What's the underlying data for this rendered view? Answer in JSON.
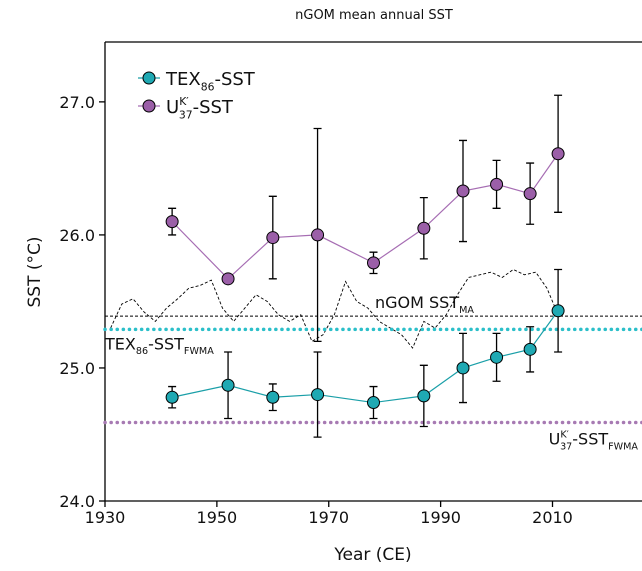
{
  "chart_data": {
    "type": "line",
    "title": "nGOM mean annual SST",
    "xlabel": "Year (CE)",
    "ylabel": "SST (°C)",
    "xlim": [
      1930,
      2026
    ],
    "ylim": [
      24.0,
      27.45
    ],
    "xticks": [
      1930,
      1950,
      1970,
      1990,
      2010
    ],
    "yticks": [
      {
        "value": 24,
        "label": "24.0"
      },
      {
        "value": 25,
        "label": "25.0"
      },
      {
        "value": 26,
        "label": "26.0"
      },
      {
        "value": 27,
        "label": "27.0"
      }
    ],
    "legend": "upper left",
    "series": [
      {
        "name": [
          {
            "text": "TEX"
          },
          {
            "text": "86",
            "sub": true
          },
          {
            "text": "-SST"
          }
        ],
        "color": "#1a9fa8",
        "marker_color": "#1fa9b3",
        "x": [
          1942,
          1952,
          1960,
          1968,
          1978,
          1987,
          1994,
          2000,
          2006,
          2011
        ],
        "values": [
          24.78,
          24.87,
          24.78,
          24.8,
          24.74,
          24.79,
          25.0,
          25.08,
          25.14,
          25.43
        ],
        "errors": [
          0.08,
          0.25,
          0.1,
          0.32,
          0.12,
          0.23,
          0.26,
          0.18,
          0.17,
          0.31
        ]
      },
      {
        "name": [
          {
            "text": "U"
          },
          {
            "text": "K′",
            "sup": true
          },
          {
            "text": "37",
            "sub": true
          },
          {
            "text": "-SST"
          }
        ],
        "color": "#a66db3",
        "marker_color": "#9b5fa8",
        "x": [
          1942,
          1952,
          1960,
          1968,
          1978,
          1987,
          1994,
          2000,
          2006,
          2011
        ],
        "values": [
          26.1,
          25.67,
          25.98,
          26.0,
          25.79,
          26.05,
          26.33,
          26.38,
          26.31,
          26.61
        ],
        "errors": [
          0.1,
          null,
          0.31,
          0.8,
          0.08,
          0.23,
          0.38,
          0.18,
          0.23,
          0.44
        ]
      }
    ],
    "reference_series": {
      "color": "#000000",
      "x": [
        1931,
        1933,
        1935,
        1937,
        1939,
        1941,
        1943,
        1945,
        1947,
        1949,
        1951,
        1953,
        1955,
        1957,
        1959,
        1961,
        1963,
        1965,
        1967,
        1969,
        1971,
        1973,
        1975,
        1977,
        1979,
        1981,
        1983,
        1985,
        1987,
        1989,
        1991,
        1993,
        1995,
        1997,
        1999,
        2001,
        2003,
        2005,
        2007,
        2009,
        2011
      ],
      "values": [
        25.3,
        25.48,
        25.52,
        25.42,
        25.35,
        25.45,
        25.52,
        25.6,
        25.62,
        25.66,
        25.45,
        25.35,
        25.45,
        25.55,
        25.5,
        25.4,
        25.35,
        25.4,
        25.2,
        25.25,
        25.4,
        25.65,
        25.5,
        25.45,
        25.35,
        25.3,
        25.25,
        25.15,
        25.35,
        25.3,
        25.4,
        25.55,
        25.68,
        25.7,
        25.72,
        25.68,
        25.74,
        25.7,
        25.72,
        25.6,
        25.4
      ]
    },
    "reference_lines": [
      {
        "value": 25.39,
        "color": "#000000",
        "style": "dashed",
        "label": [
          {
            "text": "nGOM SST"
          },
          {
            "text": "MA",
            "sub": true
          }
        ]
      },
      {
        "value": 25.29,
        "color": "#2bbfc9",
        "style": "dotted",
        "label": [
          {
            "text": "TEX"
          },
          {
            "text": "86",
            "sub": true
          },
          {
            "text": "-SST"
          },
          {
            "text": "FWMA",
            "sub": true
          }
        ]
      },
      {
        "value": 24.59,
        "color": "#a77ab3",
        "style": "dotted",
        "label": [
          {
            "text": "U"
          },
          {
            "text": "K′",
            "sup": true
          },
          {
            "text": "37",
            "sub": true
          },
          {
            "text": "-SST"
          },
          {
            "text": "FWMA",
            "sub": true
          }
        ]
      }
    ]
  }
}
